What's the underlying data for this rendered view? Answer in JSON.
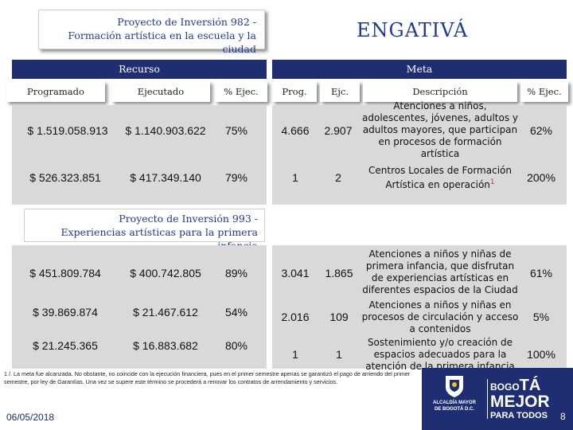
{
  "project1": {
    "title_line1": "Proyecto de Inversión  982 -",
    "title_line2": "Formación artística en la escuela y la ciudad"
  },
  "locality": "ENGATIVÁ",
  "headers": {
    "recurso": "Recurso",
    "meta": "Meta",
    "programado": "Programado",
    "ejecutado": "Ejecutado",
    "pct_ejec": "% Ejec.",
    "prog": "Prog.",
    "ejc": "Ejc.",
    "descripcion": "Descripción",
    "pct_ejec_meta": "% Ejec."
  },
  "rows1": [
    {
      "programado": "$ 1.519.058.913",
      "ejecutado": "$ 1.140.903.622",
      "pct": "75%",
      "prog": "4.666",
      "ejc": "2.907",
      "desc": "Atenciones a niños, adolescentes, jóvenes, adultos y adultos mayores, que participan en procesos de formación artística",
      "pct_meta": "62%"
    },
    {
      "programado": "$ 526.323.851",
      "ejecutado": "$ 417.349.140",
      "pct": "79%",
      "prog": "1",
      "ejc": "2",
      "desc": "Centros Locales de Formación Artística en operación",
      "desc_sup": "1",
      "pct_meta": "200%"
    }
  ],
  "project2": {
    "title_line1": "Proyecto de Inversión  993 -",
    "title_line2": "Experiencias artísticas para la primera infancia"
  },
  "rows2": [
    {
      "programado": "$ 451.809.784",
      "ejecutado": "$ 400.742.805",
      "pct": "89%",
      "prog": "3.041",
      "ejc": "1.865",
      "desc": "Atenciones a niños y niñas de primera infancia, que disfrutan de experiencias artísticas en diferentes espacios de la Ciudad",
      "pct_meta": "61%"
    },
    {
      "programado": "$ 39.869.874",
      "ejecutado": "$ 21.467.612",
      "pct": "54%",
      "prog": "2.016",
      "ejc": "109",
      "desc": "Atenciones a niños y niñas en procesos de circulación y acceso a contenidos",
      "pct_meta": "5%"
    },
    {
      "programado": "$ 21.245.365",
      "ejecutado": "$ 16.883.682",
      "pct": "80%",
      "prog": "1",
      "ejc": "1",
      "desc": "Sostenimiento y/o creación de espacios adecuados para la atención de la primera infancia",
      "pct_meta": "100%"
    }
  ],
  "footnote": "1 /. La meta fue alcanzada. No obstante, no coincide con la ejecución financiera, pues en el primer semestre apenas se garantizó el pago de arriendo del primer semestre, por ley de Garantías. Una vez se supere este término se procederá a renovar los contratos de arrendamiento y servicios.",
  "date": "06/05/2018",
  "logo_alcaldia": {
    "line1": "ALCALDÍA MAYOR",
    "line2": "DE BOGOTÁ D.C."
  },
  "logo_bogota": {
    "part1": "BOGO",
    "part2": "TÁ",
    "line2": "MEJOR",
    "line3": "PARA TODOS"
  },
  "page_number": "8",
  "colors": {
    "navy": "#1f2d73",
    "title_blue": "#1f3a93",
    "grey": "#d9d9d9"
  }
}
